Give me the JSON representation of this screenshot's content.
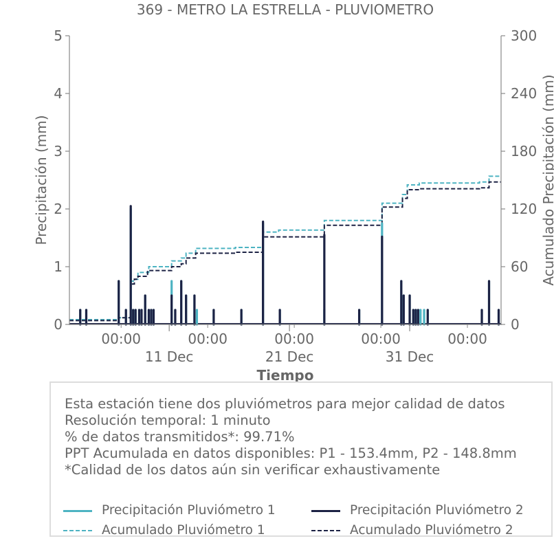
{
  "chart_data": {
    "type": "bar",
    "title": "369 - METRO LA ESTRELLA - PLUVIOMETRO",
    "xlabel": "Tiempo",
    "ylabel": "Precipitación (mm)",
    "y2label": "Acumulado Precipitación (mm)",
    "ylim": [
      0,
      5
    ],
    "y2lim": [
      0,
      300
    ],
    "yticks": [
      "0",
      "1",
      "2",
      "3",
      "4",
      "5"
    ],
    "y2ticks": [
      "0",
      "60",
      "120",
      "180",
      "240",
      "300"
    ],
    "xlim": [
      2.7,
      38.6
    ],
    "x_unit": "day of December",
    "xticks_minor": [
      {
        "x": 7.0,
        "label": "00:00"
      },
      {
        "x": 14.2,
        "label": "00:00"
      },
      {
        "x": 21.4,
        "label": "00:00"
      },
      {
        "x": 28.6,
        "label": "00:00"
      },
      {
        "x": 35.8,
        "label": "00:00"
      }
    ],
    "xticks_major": [
      {
        "x": 11,
        "label": "11 Dec"
      },
      {
        "x": 21,
        "label": "21 Dec"
      },
      {
        "x": 31,
        "label": "31 Dec"
      }
    ],
    "colors": {
      "p1": "#4db3c2",
      "p2": "#1c2244"
    },
    "series": [
      {
        "name": "Precipitación Pluviómetro 1",
        "kind": "bar",
        "x": [
          3.6,
          4.1,
          6.8,
          7.4,
          7.8,
          8.0,
          8.2,
          8.5,
          8.7,
          9.0,
          9.3,
          9.5,
          9.7,
          11.2,
          11.5,
          12.0,
          12.4,
          13.1,
          13.3,
          14.7,
          17.0,
          18.8,
          20.2,
          23.9,
          26.8,
          28.7,
          30.3,
          30.5,
          31.0,
          31.3,
          31.5,
          31.7,
          31.9,
          32.2,
          32.5,
          37.0,
          37.6,
          38.4
        ],
        "values": [
          0.25,
          0.25,
          0.75,
          0.25,
          2.0,
          0.25,
          0.25,
          0.25,
          0.25,
          0.5,
          0.25,
          0.25,
          0.25,
          0.75,
          0.25,
          0.75,
          0.5,
          0.5,
          0.25,
          0.25,
          0.25,
          1.75,
          0.25,
          0.25,
          0.25,
          1.75,
          0.75,
          0.5,
          0.5,
          0.25,
          0.25,
          0.25,
          0.25,
          0.25,
          0.25,
          0.25,
          0.75,
          0.25
        ]
      },
      {
        "name": "Precipitación Pluviómetro 2",
        "kind": "bar",
        "x": [
          3.6,
          4.1,
          6.8,
          7.4,
          7.8,
          8.0,
          8.2,
          8.5,
          8.7,
          9.0,
          9.3,
          9.5,
          9.7,
          11.2,
          11.5,
          12.0,
          12.4,
          13.1,
          14.7,
          17.0,
          18.8,
          20.2,
          23.9,
          26.8,
          28.7,
          30.3,
          30.5,
          31.0,
          31.3,
          31.5,
          31.7,
          32.5,
          37.0,
          37.6,
          38.4
        ],
        "values": [
          0.25,
          0.25,
          0.75,
          0.25,
          2.05,
          0.25,
          0.25,
          0.25,
          0.25,
          0.5,
          0.25,
          0.25,
          0.25,
          0.5,
          0.25,
          0.75,
          0.5,
          0.5,
          0.25,
          0.25,
          1.78,
          0.25,
          1.55,
          0.25,
          1.52,
          0.75,
          0.5,
          0.5,
          0.25,
          0.25,
          0.25,
          0.25,
          0.25,
          0.75,
          0.25
        ]
      },
      {
        "name": "Acumulado Pluviómetro 1",
        "kind": "step",
        "x": [
          2.7,
          6.0,
          6.8,
          7.7,
          7.8,
          8.1,
          8.4,
          9.3,
          11.1,
          11.2,
          12.0,
          12.4,
          13.2,
          16.5,
          18.8,
          20.1,
          23.9,
          28.6,
          28.7,
          30.4,
          30.8,
          31.8,
          36.8,
          37.6,
          38.6
        ],
        "values": [
          5,
          5,
          7,
          7,
          45,
          47,
          54,
          60,
          60,
          66,
          69,
          74,
          79,
          80,
          96,
          98,
          108,
          108,
          126,
          135,
          145,
          147,
          148,
          154,
          154
        ]
      },
      {
        "name": "Acumulado Pluviómetro 2",
        "kind": "step",
        "x": [
          2.7,
          6.8,
          7.8,
          8.1,
          8.4,
          9.2,
          11.1,
          11.2,
          12.0,
          12.4,
          13.2,
          16.5,
          18.8,
          20.1,
          23.9,
          28.6,
          28.7,
          30.4,
          30.8,
          31.8,
          36.8,
          37.6,
          38.6
        ],
        "values": [
          4,
          7,
          42,
          47,
          50,
          56,
          56,
          60,
          63,
          69,
          74,
          75,
          91,
          91,
          103,
          104,
          122,
          131,
          140,
          141,
          142,
          148,
          148
        ]
      }
    ]
  },
  "info": {
    "line1": "Esta estación tiene dos pluviómetros para mejor calidad de datos",
    "line2": "Resolución temporal: 1 minuto",
    "line3": "% de datos transmitidos*: 99.71%",
    "line4": "PPT Acumulada en datos disponibles: P1 - 153.4mm, P2 - 148.8mm",
    "line5": "*Calidad de los datos aún sin verificar exhaustivamente"
  },
  "legend": {
    "p1_bar": "Precipitación Pluviómetro 1",
    "p2_bar": "Precipitación Pluviómetro 2",
    "p1_acc": "Acumulado Pluviómetro 1",
    "p2_acc": "Acumulado Pluviómetro 2"
  }
}
